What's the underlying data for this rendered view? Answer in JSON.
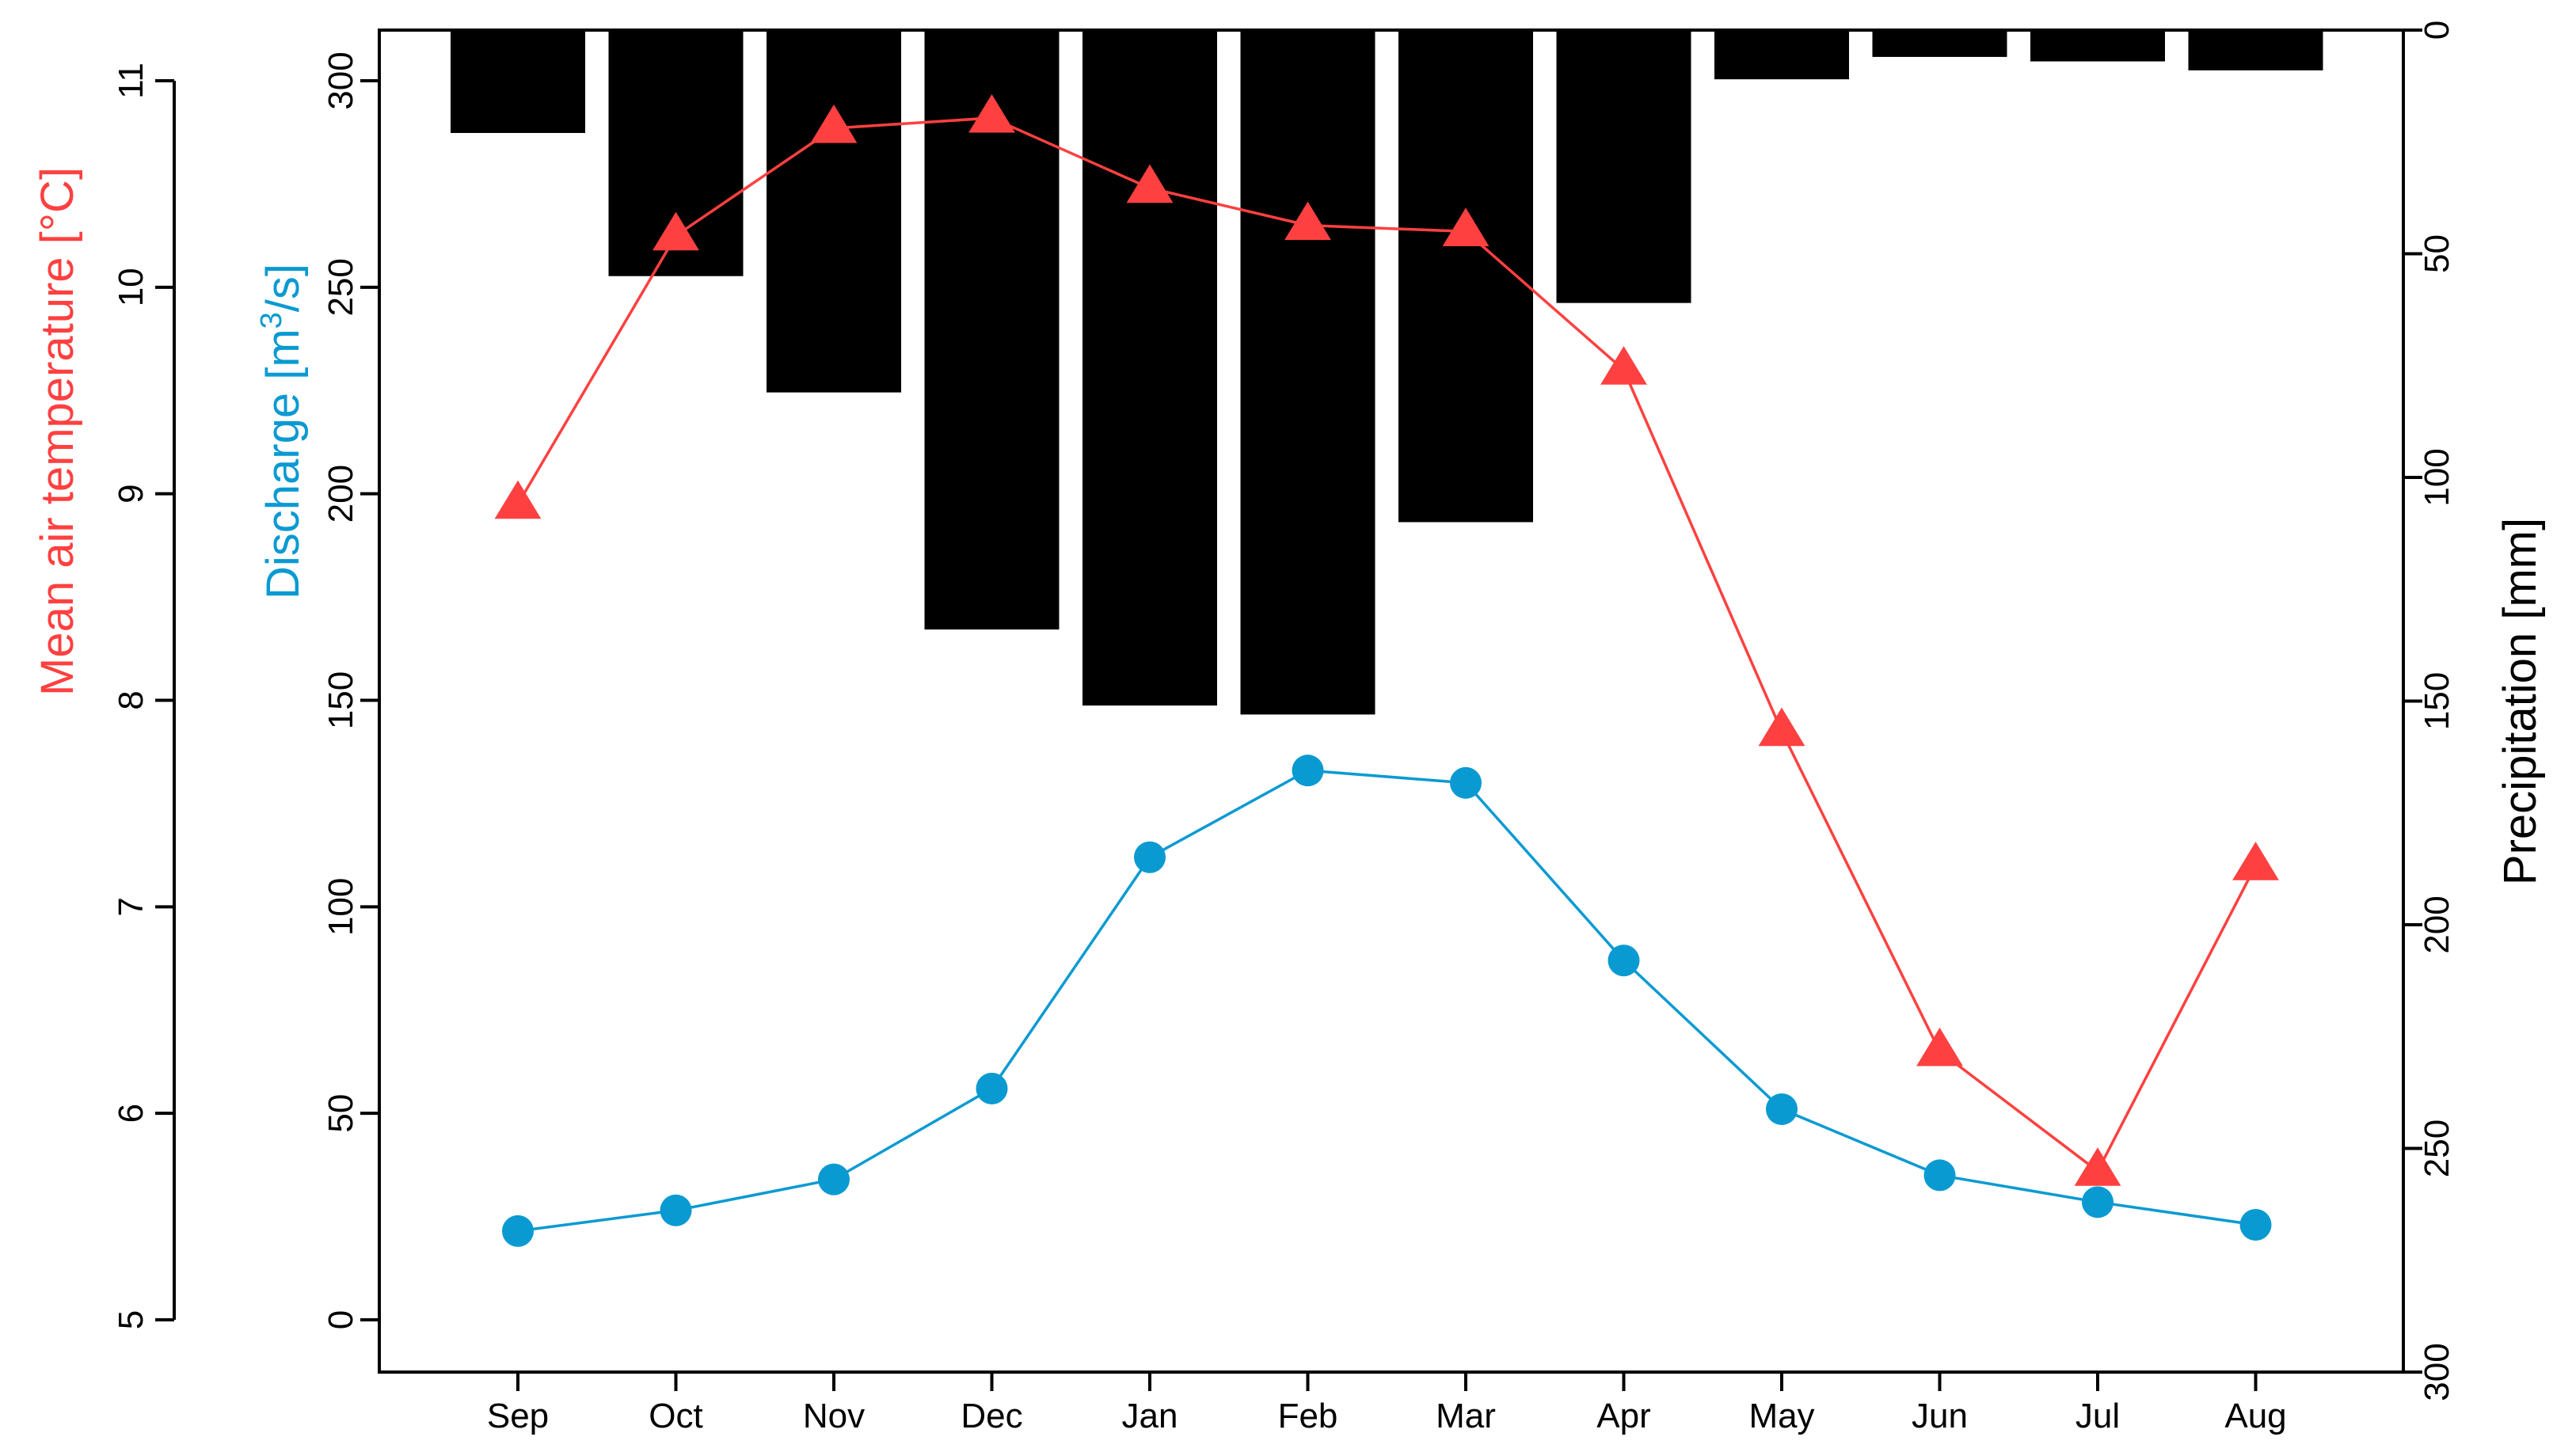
{
  "chart_data": {
    "type": "bar",
    "categories": [
      "Sep",
      "Oct",
      "Nov",
      "Dec",
      "Jan",
      "Feb",
      "Mar",
      "Apr",
      "May",
      "Jun",
      "Jul",
      "Aug"
    ],
    "series": [
      {
        "kind": "bar",
        "axis": "precipitation",
        "color": "#000000",
        "values": [
          23,
          55,
          81,
          134,
          151,
          153,
          110,
          61,
          11,
          6,
          7,
          9
        ]
      },
      {
        "kind": "line",
        "axis": "temperature",
        "marker": "triangle",
        "color": "#FF4040",
        "values": [
          8.95,
          10.25,
          10.77,
          10.82,
          10.48,
          10.3,
          10.27,
          9.6,
          7.85,
          6.3,
          5.72,
          7.2
        ]
      },
      {
        "kind": "line",
        "axis": "discharge",
        "marker": "circle",
        "color": "#0A9AD2",
        "values": [
          21.5,
          26.5,
          34,
          56,
          112,
          133,
          130,
          87,
          51,
          35,
          28.5,
          23
        ]
      }
    ],
    "axes": {
      "temperature": {
        "label": "Mean air temperature [°C]",
        "color": "#FF4040",
        "range": [
          5,
          11
        ],
        "ticks": [
          5,
          6,
          7,
          8,
          9,
          10,
          11
        ]
      },
      "discharge": {
        "label_main": "Discharge [m",
        "label_sup": "3",
        "label_tail": "/s]",
        "color": "#0A9AD2",
        "range": [
          0,
          300
        ],
        "ticks": [
          0,
          50,
          100,
          150,
          200,
          250,
          300
        ]
      },
      "precipitation": {
        "label": "Precipitation [mm]",
        "color": "#000000",
        "range": [
          0,
          300
        ],
        "reversed": true,
        "ticks": [
          0,
          50,
          100,
          150,
          200,
          250,
          300
        ]
      }
    },
    "grid": false,
    "legend": "none"
  }
}
